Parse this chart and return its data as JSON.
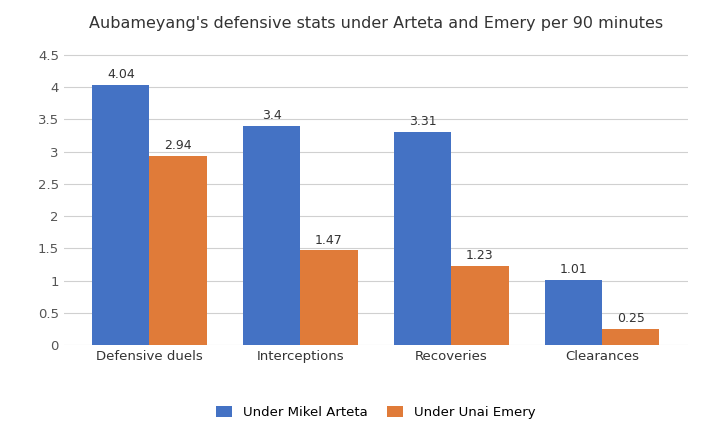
{
  "title": "Aubameyang's defensive stats under Arteta and Emery per 90 minutes",
  "categories": [
    "Defensive duels",
    "Interceptions",
    "Recoveries",
    "Clearances"
  ],
  "arteta_values": [
    4.04,
    3.4,
    3.31,
    1.01
  ],
  "emery_values": [
    2.94,
    1.47,
    1.23,
    0.25
  ],
  "arteta_color": "#4472C4",
  "emery_color": "#E07B39",
  "arteta_label": "Under Mikel Arteta",
  "emery_label": "Under Unai Emery",
  "ylim": [
    0,
    4.7
  ],
  "ytick_values": [
    0,
    0.5,
    1,
    1.5,
    2,
    2.5,
    3,
    3.5,
    4,
    4.5
  ],
  "ytick_labels": [
    "0",
    "0.5",
    "1",
    "1.5",
    "2",
    "2.5",
    "3",
    "3.5",
    "4",
    "4.5"
  ],
  "bar_width": 0.38,
  "background_color": "#FFFFFF",
  "grid_color": "#D0D0D0",
  "title_fontsize": 11.5,
  "tick_fontsize": 9.5,
  "annotation_fontsize": 9,
  "legend_fontsize": 9.5
}
